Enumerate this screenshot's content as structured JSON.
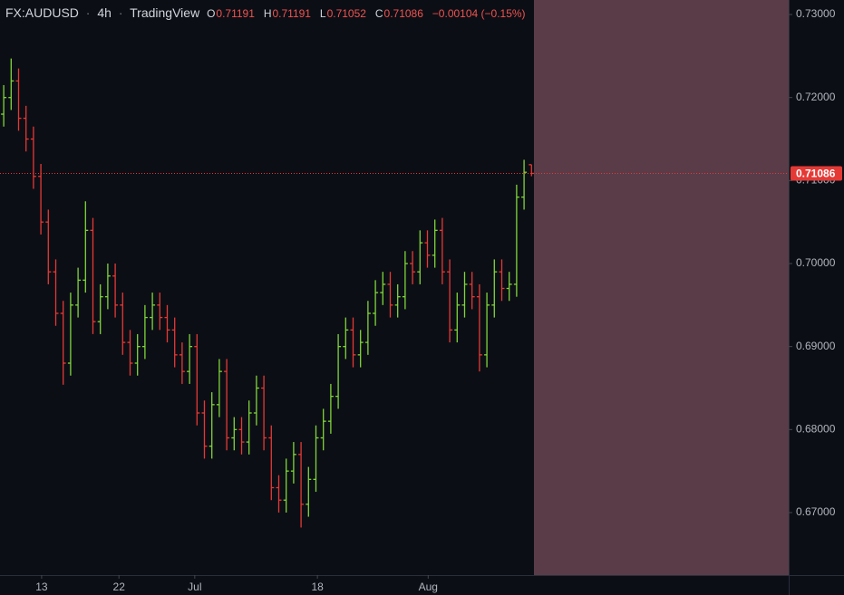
{
  "header": {
    "symbol": "FX:AUDUSD",
    "separator": "·",
    "interval": "4h",
    "source": "TradingView",
    "open_label": "O",
    "open": "0.71191",
    "high_label": "H",
    "high": "0.71191",
    "low_label": "L",
    "low": "0.71052",
    "close_label": "C",
    "close": "0.71086",
    "change": "−0.00104 (−0.15%)"
  },
  "chart_data": {
    "type": "ohlc",
    "up_color": "#7fd63a",
    "down_color": "#e53935",
    "grid": false,
    "x": [
      0,
      1,
      2,
      3,
      4,
      5,
      6,
      7,
      8,
      9,
      10,
      11,
      12,
      13,
      14,
      15,
      16,
      17,
      18,
      19,
      20,
      21,
      22,
      23,
      24,
      25,
      26,
      27,
      28,
      29,
      30,
      31,
      32,
      33,
      34,
      35,
      36,
      37,
      38,
      39,
      40,
      41,
      42,
      43,
      44,
      45,
      46,
      47,
      48,
      49,
      50,
      51,
      52,
      53,
      54,
      55,
      56,
      57,
      58,
      59,
      60,
      61,
      62,
      63,
      64,
      65,
      66,
      67,
      68,
      69,
      70,
      71
    ],
    "open": [
      0.718,
      0.72,
      0.722,
      0.7175,
      0.715,
      0.7105,
      0.705,
      0.699,
      0.694,
      0.688,
      0.695,
      0.698,
      0.704,
      0.693,
      0.696,
      0.6985,
      0.695,
      0.6905,
      0.688,
      0.69,
      0.6935,
      0.695,
      0.6935,
      0.692,
      0.689,
      0.687,
      0.69,
      0.682,
      0.678,
      0.683,
      0.687,
      0.679,
      0.68,
      0.6785,
      0.682,
      0.685,
      0.679,
      0.673,
      0.6715,
      0.675,
      0.677,
      0.671,
      0.674,
      0.679,
      0.681,
      0.684,
      0.69,
      0.692,
      0.689,
      0.6905,
      0.694,
      0.6965,
      0.6975,
      0.695,
      0.696,
      0.7,
      0.699,
      0.7025,
      0.701,
      0.704,
      0.699,
      0.692,
      0.695,
      0.6975,
      0.696,
      0.689,
      0.695,
      0.699,
      0.697,
      0.6975,
      0.708,
      0.71191
    ],
    "high": [
      0.7215,
      0.7247,
      0.7235,
      0.719,
      0.7165,
      0.712,
      0.7065,
      0.7005,
      0.6955,
      0.6965,
      0.6995,
      0.7075,
      0.7055,
      0.6975,
      0.7,
      0.7,
      0.6965,
      0.692,
      0.6915,
      0.695,
      0.6965,
      0.6965,
      0.695,
      0.6935,
      0.6905,
      0.6915,
      0.6915,
      0.6835,
      0.6845,
      0.6885,
      0.6885,
      0.6815,
      0.6815,
      0.6835,
      0.6865,
      0.6865,
      0.6805,
      0.6745,
      0.6765,
      0.6785,
      0.6785,
      0.6755,
      0.6805,
      0.6825,
      0.6855,
      0.6915,
      0.6935,
      0.6935,
      0.692,
      0.6955,
      0.698,
      0.699,
      0.699,
      0.6975,
      0.7015,
      0.7015,
      0.704,
      0.704,
      0.7053,
      0.7055,
      0.7005,
      0.6965,
      0.699,
      0.699,
      0.6975,
      0.6965,
      0.7005,
      0.7005,
      0.699,
      0.7095,
      0.7125,
      0.71191
    ],
    "low": [
      0.7165,
      0.7185,
      0.716,
      0.7135,
      0.709,
      0.7035,
      0.6975,
      0.6925,
      0.6854,
      0.6865,
      0.6935,
      0.6965,
      0.6915,
      0.6915,
      0.6945,
      0.6935,
      0.689,
      0.6865,
      0.6865,
      0.6885,
      0.692,
      0.692,
      0.6905,
      0.6875,
      0.6855,
      0.6855,
      0.6805,
      0.6765,
      0.6765,
      0.6815,
      0.6775,
      0.6775,
      0.677,
      0.677,
      0.6805,
      0.6775,
      0.6715,
      0.67,
      0.67,
      0.6735,
      0.6682,
      0.6695,
      0.6725,
      0.6775,
      0.6795,
      0.6825,
      0.6885,
      0.6875,
      0.6875,
      0.689,
      0.6925,
      0.695,
      0.6935,
      0.6935,
      0.6945,
      0.6975,
      0.6975,
      0.6995,
      0.6995,
      0.6975,
      0.6905,
      0.6905,
      0.6935,
      0.6945,
      0.687,
      0.6875,
      0.6935,
      0.6955,
      0.6955,
      0.696,
      0.7065,
      0.71052
    ],
    "close": [
      0.72,
      0.722,
      0.7175,
      0.715,
      0.7105,
      0.705,
      0.699,
      0.694,
      0.688,
      0.695,
      0.698,
      0.704,
      0.693,
      0.696,
      0.6985,
      0.695,
      0.6905,
      0.688,
      0.69,
      0.6935,
      0.695,
      0.6935,
      0.692,
      0.689,
      0.687,
      0.69,
      0.682,
      0.678,
      0.683,
      0.687,
      0.679,
      0.68,
      0.6785,
      0.682,
      0.685,
      0.679,
      0.673,
      0.6715,
      0.675,
      0.677,
      0.671,
      0.674,
      0.679,
      0.681,
      0.684,
      0.69,
      0.692,
      0.689,
      0.6905,
      0.694,
      0.6965,
      0.6975,
      0.695,
      0.696,
      0.7,
      0.699,
      0.7025,
      0.701,
      0.704,
      0.699,
      0.692,
      0.695,
      0.6975,
      0.696,
      0.689,
      0.695,
      0.699,
      0.697,
      0.6975,
      0.708,
      0.711,
      0.71086
    ],
    "xlim": [
      -0.5,
      105.6
    ],
    "xticks": [
      {
        "value": 5.1,
        "label": "13"
      },
      {
        "value": 15.5,
        "label": "22"
      },
      {
        "value": 25.7,
        "label": "Jul"
      },
      {
        "value": 42.2,
        "label": "18"
      },
      {
        "value": 57.1,
        "label": "Aug"
      }
    ],
    "ylim": [
      0.66247,
      0.73175
    ],
    "yticks": [
      {
        "value": 0.67,
        "label": "0.67000"
      },
      {
        "value": 0.68,
        "label": "0.68000"
      },
      {
        "value": 0.69,
        "label": "0.69000"
      },
      {
        "value": 0.7,
        "label": "0.70000"
      },
      {
        "value": 0.71,
        "label": "0.71000"
      },
      {
        "value": 0.72,
        "label": "0.72000"
      },
      {
        "value": 0.73,
        "label": "0.73000"
      }
    ]
  }
}
